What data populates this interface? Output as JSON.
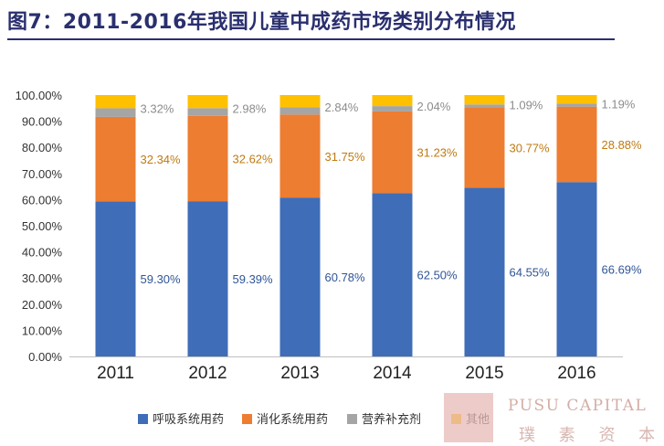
{
  "title": "图7：2011-2016年我国儿童中成药市场类别分布情况",
  "watermark": {
    "en": "PUSU CAPITAL",
    "cn": "璞 素 资 本"
  },
  "chart_data": {
    "type": "bar",
    "stacked": true,
    "categories": [
      "2011",
      "2012",
      "2013",
      "2014",
      "2015",
      "2016"
    ],
    "ylim": [
      0,
      100
    ],
    "ytick_step": 10,
    "ytick_labels": [
      "0.00%",
      "10.00%",
      "20.00%",
      "30.00%",
      "40.00%",
      "50.00%",
      "60.00%",
      "70.00%",
      "80.00%",
      "90.00%",
      "100.00%"
    ],
    "grid": false,
    "legend_position": "bottom",
    "series": [
      {
        "name": "呼吸系统用药",
        "color": "#3f6db8",
        "label_color": "#2f5597",
        "values": [
          59.3,
          59.39,
          60.78,
          62.5,
          64.55,
          66.69
        ],
        "labels": [
          "59.30%",
          "59.39%",
          "60.78%",
          "62.50%",
          "64.55%",
          "66.69%"
        ]
      },
      {
        "name": "消化系统用药",
        "color": "#ed7d31",
        "label_color": "#c07a12",
        "values": [
          32.34,
          32.62,
          31.75,
          31.23,
          30.77,
          28.88
        ],
        "labels": [
          "32.34%",
          "32.62%",
          "31.75%",
          "31.23%",
          "30.77%",
          "28.88%"
        ]
      },
      {
        "name": "营养补充剂",
        "color": "#a5a5a5",
        "label_color": "#8c8c8c",
        "values": [
          3.32,
          2.98,
          2.84,
          2.04,
          1.09,
          1.19
        ],
        "labels": [
          "3.32%",
          "2.98%",
          "2.84%",
          "2.04%",
          "1.09%",
          "1.19%"
        ]
      },
      {
        "name": "其他",
        "color": "#ffc000",
        "label_color": "#8c8c8c",
        "values": [
          5.04,
          5.01,
          4.63,
          4.23,
          3.59,
          3.24
        ],
        "labels": []
      }
    ]
  }
}
